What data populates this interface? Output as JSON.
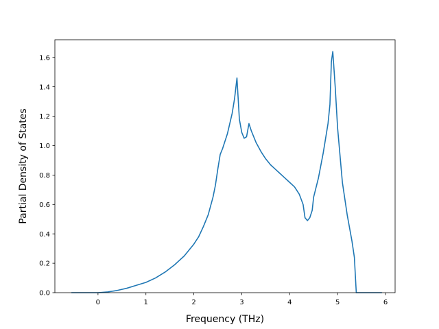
{
  "chart_data": {
    "type": "line",
    "title": "",
    "xlabel": "Frequency (THz)",
    "ylabel": "Partial Density of States",
    "xlim": [
      -0.9,
      6.2
    ],
    "ylim": [
      0.0,
      1.72
    ],
    "xticks": [
      0,
      1,
      2,
      3,
      4,
      5,
      6
    ],
    "yticks": [
      0.0,
      0.2,
      0.4,
      0.6,
      0.8,
      1.0,
      1.2,
      1.4,
      1.6
    ],
    "grid": false,
    "legend": "none",
    "series": [
      {
        "color": "#1f77b4",
        "x": [
          -0.55,
          0.0,
          0.2,
          0.4,
          0.6,
          0.8,
          1.0,
          1.2,
          1.4,
          1.6,
          1.8,
          2.0,
          2.1,
          2.2,
          2.3,
          2.4,
          2.45,
          2.5,
          2.55,
          2.6,
          2.7,
          2.8,
          2.85,
          2.9,
          2.95,
          3.0,
          3.05,
          3.1,
          3.15,
          3.2,
          3.3,
          3.4,
          3.5,
          3.6,
          3.7,
          3.8,
          3.9,
          4.0,
          4.1,
          4.2,
          4.28,
          4.32,
          4.37,
          4.42,
          4.47,
          4.5,
          4.6,
          4.7,
          4.8,
          4.84,
          4.87,
          4.9,
          4.95,
          5.0,
          5.1,
          5.2,
          5.3,
          5.35,
          5.39,
          5.6,
          5.92
        ],
        "y": [
          0.0,
          0.0,
          0.005,
          0.015,
          0.03,
          0.05,
          0.07,
          0.1,
          0.14,
          0.19,
          0.25,
          0.33,
          0.38,
          0.45,
          0.53,
          0.65,
          0.73,
          0.84,
          0.94,
          0.98,
          1.08,
          1.22,
          1.32,
          1.46,
          1.18,
          1.09,
          1.05,
          1.06,
          1.15,
          1.1,
          1.02,
          0.96,
          0.91,
          0.87,
          0.84,
          0.81,
          0.78,
          0.75,
          0.72,
          0.67,
          0.6,
          0.51,
          0.49,
          0.51,
          0.56,
          0.65,
          0.78,
          0.95,
          1.15,
          1.28,
          1.57,
          1.64,
          1.4,
          1.12,
          0.75,
          0.53,
          0.35,
          0.24,
          0.0,
          0.0,
          0.0
        ]
      }
    ]
  }
}
